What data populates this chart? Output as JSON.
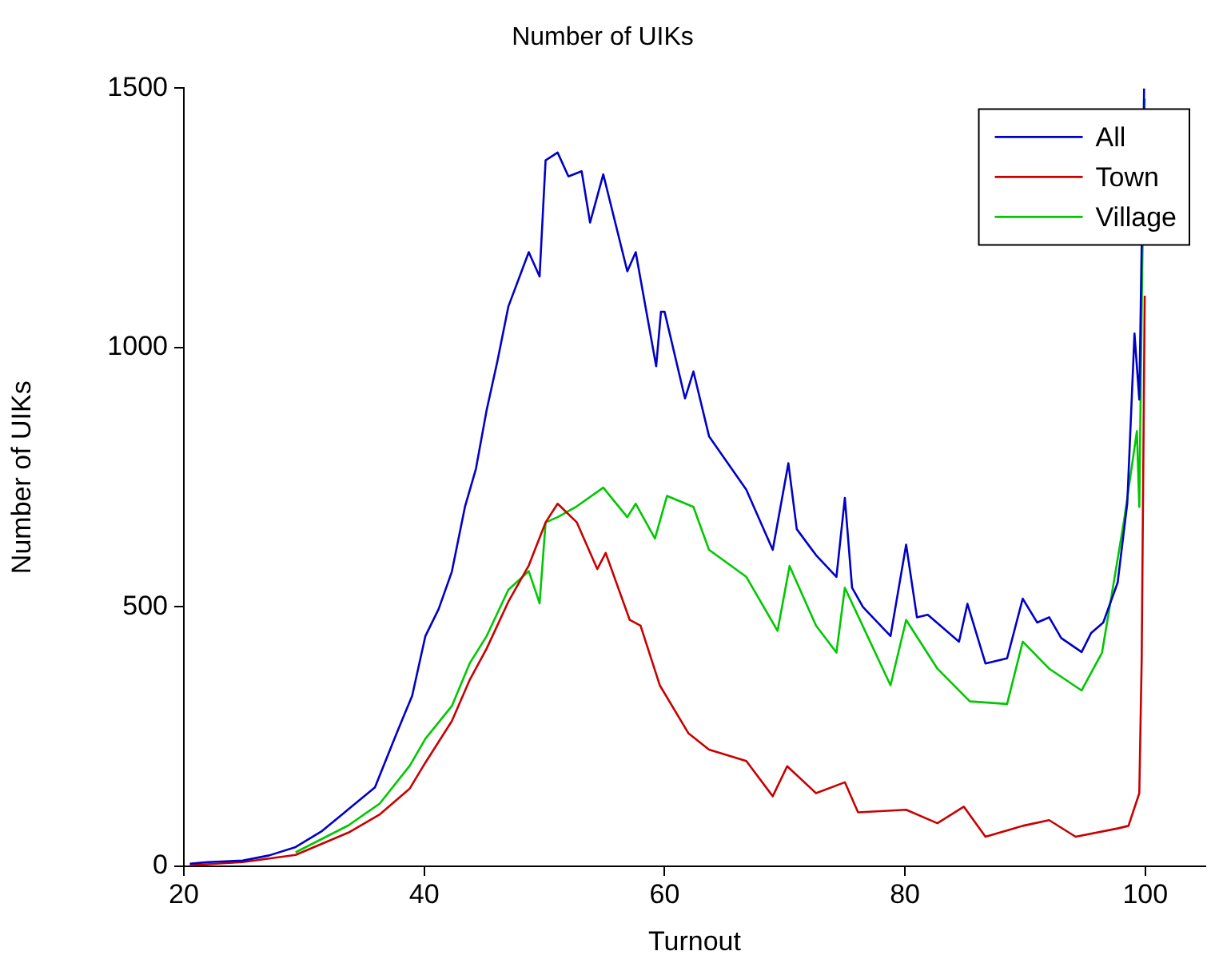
{
  "chart_data": {
    "type": "line",
    "title": "Number of UIKs",
    "xlabel": "Turnout",
    "ylabel": "Number of UIKs",
    "xlim": [
      20,
      105
    ],
    "xticks": [
      20,
      40,
      60,
      80,
      100
    ],
    "ylim": [
      0,
      1500
    ],
    "yticks": [
      0,
      500,
      1000,
      1500
    ],
    "grid": false,
    "legend": "top right",
    "marker": "none",
    "line_style": "solid",
    "series": [
      {
        "name": "All",
        "color": "#0000c8",
        "x": [
          20.5,
          22,
          24.9,
          27.1,
          29.3,
          31.5,
          33.7,
          35.9,
          37.7,
          39,
          40.1,
          41.2,
          42.3,
          43.4,
          44.3,
          45.2,
          46.1,
          47,
          48.7,
          49.6,
          50.1,
          51.1,
          52,
          53.1,
          53.8,
          54.9,
          56.9,
          57.6,
          58,
          59.3,
          59.7,
          60,
          61.7,
          62.4,
          63.7,
          66.8,
          69,
          70.3,
          71,
          72.6,
          74.3,
          75,
          75.6,
          76.5,
          78.8,
          80.1,
          81,
          81.9,
          84.5,
          85.2,
          86.7,
          88.5,
          89.8,
          91,
          92,
          93,
          94.7,
          95.5,
          96.5,
          97.7,
          98.5,
          99.1,
          99.5,
          99.9
        ],
        "values": [
          5,
          8,
          11,
          21,
          37,
          68,
          110,
          152,
          256,
          329,
          444,
          496,
          568,
          694,
          766,
          880,
          975,
          1079,
          1184,
          1137,
          1361,
          1376,
          1330,
          1340,
          1241,
          1334,
          1147,
          1184,
          1132,
          964,
          1069,
          1069,
          902,
          954,
          829,
          726,
          610,
          777,
          650,
          600,
          558,
          710,
          537,
          500,
          444,
          620,
          480,
          485,
          433,
          506,
          391,
          401,
          516,
          470,
          480,
          440,
          413,
          450,
          470,
          547,
          700,
          1027,
          900,
          1500
        ]
      },
      {
        "name": "Town",
        "color": "#c80000",
        "x": [
          20.5,
          24.9,
          29.3,
          33.7,
          36.3,
          38.8,
          40.1,
          42.3,
          43.8,
          45.2,
          47,
          48.7,
          50.1,
          51.1,
          52.7,
          54.4,
          55.1,
          57.1,
          58,
          59.6,
          62,
          63.7,
          66.8,
          69,
          70.2,
          72.6,
          75,
          76.1,
          80.1,
          82.7,
          84.9,
          86.7,
          89.8,
          92,
          94.2,
          97.7,
          98.6,
          99.5,
          99.7,
          99.95
        ],
        "values": [
          2,
          8,
          22,
          65,
          100,
          150,
          200,
          280,
          360,
          420,
          510,
          580,
          663,
          699,
          663,
          573,
          604,
          475,
          464,
          349,
          256,
          225,
          203,
          135,
          193,
          141,
          162,
          104,
          109,
          83,
          115,
          57,
          78,
          89,
          57,
          73,
          78,
          141,
          401,
          1100
        ]
      },
      {
        "name": "Village",
        "color": "#00c800",
        "x": [
          29.3,
          33.7,
          36.3,
          38.8,
          40.1,
          42.3,
          43.8,
          45.2,
          47,
          48.7,
          49.6,
          50.1,
          51.1,
          52.7,
          54.9,
          56.9,
          57.6,
          59.2,
          60.2,
          62.4,
          63.7,
          66.8,
          69.4,
          70.4,
          72.6,
          74.3,
          75,
          78.8,
          80.1,
          82.7,
          85.4,
          88.5,
          89.8,
          92,
          94.7,
          96.4,
          98.2,
          99.3,
          99.5,
          99.7,
          99.95
        ],
        "values": [
          27,
          79,
          121,
          194,
          246,
          309,
          392,
          444,
          533,
          569,
          507,
          663,
          673,
          694,
          730,
          673,
          699,
          632,
          714,
          693,
          610,
          558,
          454,
          579,
          464,
          412,
          537,
          349,
          475,
          381,
          318,
          313,
          433,
          381,
          339,
          412,
          662,
          839,
          693,
          1079,
          1480
        ]
      }
    ]
  }
}
